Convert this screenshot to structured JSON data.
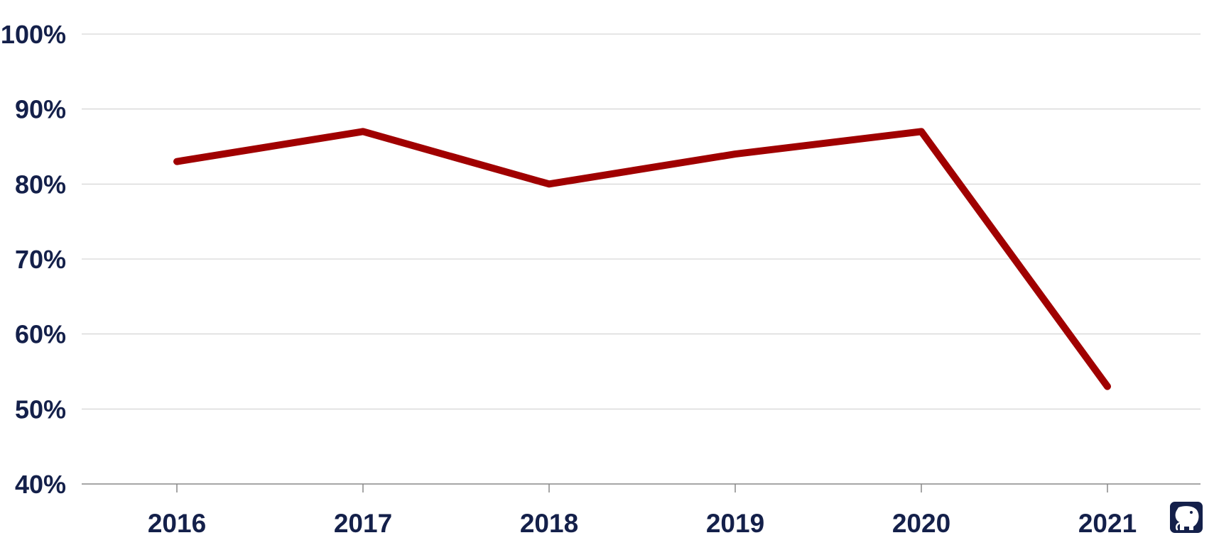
{
  "chart_data": {
    "type": "line",
    "title": "",
    "xlabel": "",
    "ylabel": "",
    "x": [
      "2016",
      "2017",
      "2018",
      "2019",
      "2020",
      "2021"
    ],
    "series": [
      {
        "values": [
          83,
          87,
          80,
          84,
          87,
          53
        ]
      }
    ],
    "ylim": [
      40,
      100
    ],
    "y_ticks": [
      100,
      90,
      80,
      70,
      60,
      50,
      40
    ],
    "y_tick_labels": [
      "100%",
      "90%",
      "80%",
      "70%",
      "60%",
      "50%",
      "40%"
    ],
    "grid": true,
    "legend": "none",
    "colors": {
      "line": "#a00000",
      "text": "#14204a",
      "grid": "#cccccc",
      "axis": "#888888",
      "logo": "#14204a"
    }
  },
  "logo": {
    "icon": "elephant-icon"
  }
}
